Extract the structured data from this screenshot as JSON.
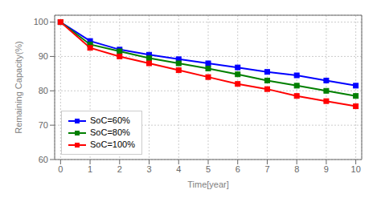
{
  "chart_data": {
    "type": "line",
    "xlabel": "Time[year]",
    "ylabel": "Remaining Capacity(%)",
    "x": [
      0,
      1,
      2,
      3,
      4,
      5,
      6,
      7,
      8,
      9,
      10
    ],
    "xlim": [
      -0.2,
      10.2
    ],
    "xticks": [
      0,
      1,
      2,
      3,
      4,
      5,
      6,
      7,
      8,
      9,
      10
    ],
    "ylim": [
      60,
      102
    ],
    "yticks": [
      60,
      70,
      80,
      90,
      100
    ],
    "grid": true,
    "legend": "lower left",
    "series": [
      {
        "name": "SoC=60%",
        "color": "#0000FF",
        "marker": "square",
        "values": [
          100,
          94.5,
          92.0,
          90.5,
          89.2,
          88.0,
          86.8,
          85.5,
          84.5,
          83.0,
          81.5
        ]
      },
      {
        "name": "SoC=80%",
        "color": "#007F00",
        "marker": "square",
        "values": [
          100,
          93.5,
          91.5,
          89.5,
          88.0,
          86.5,
          84.8,
          83.0,
          81.5,
          80.0,
          78.5
        ]
      },
      {
        "name": "SoC=100%",
        "color": "#FF0000",
        "marker": "square",
        "values": [
          100,
          92.5,
          90.0,
          88.0,
          86.0,
          84.0,
          82.0,
          80.5,
          78.5,
          77.0,
          75.5
        ]
      }
    ]
  }
}
